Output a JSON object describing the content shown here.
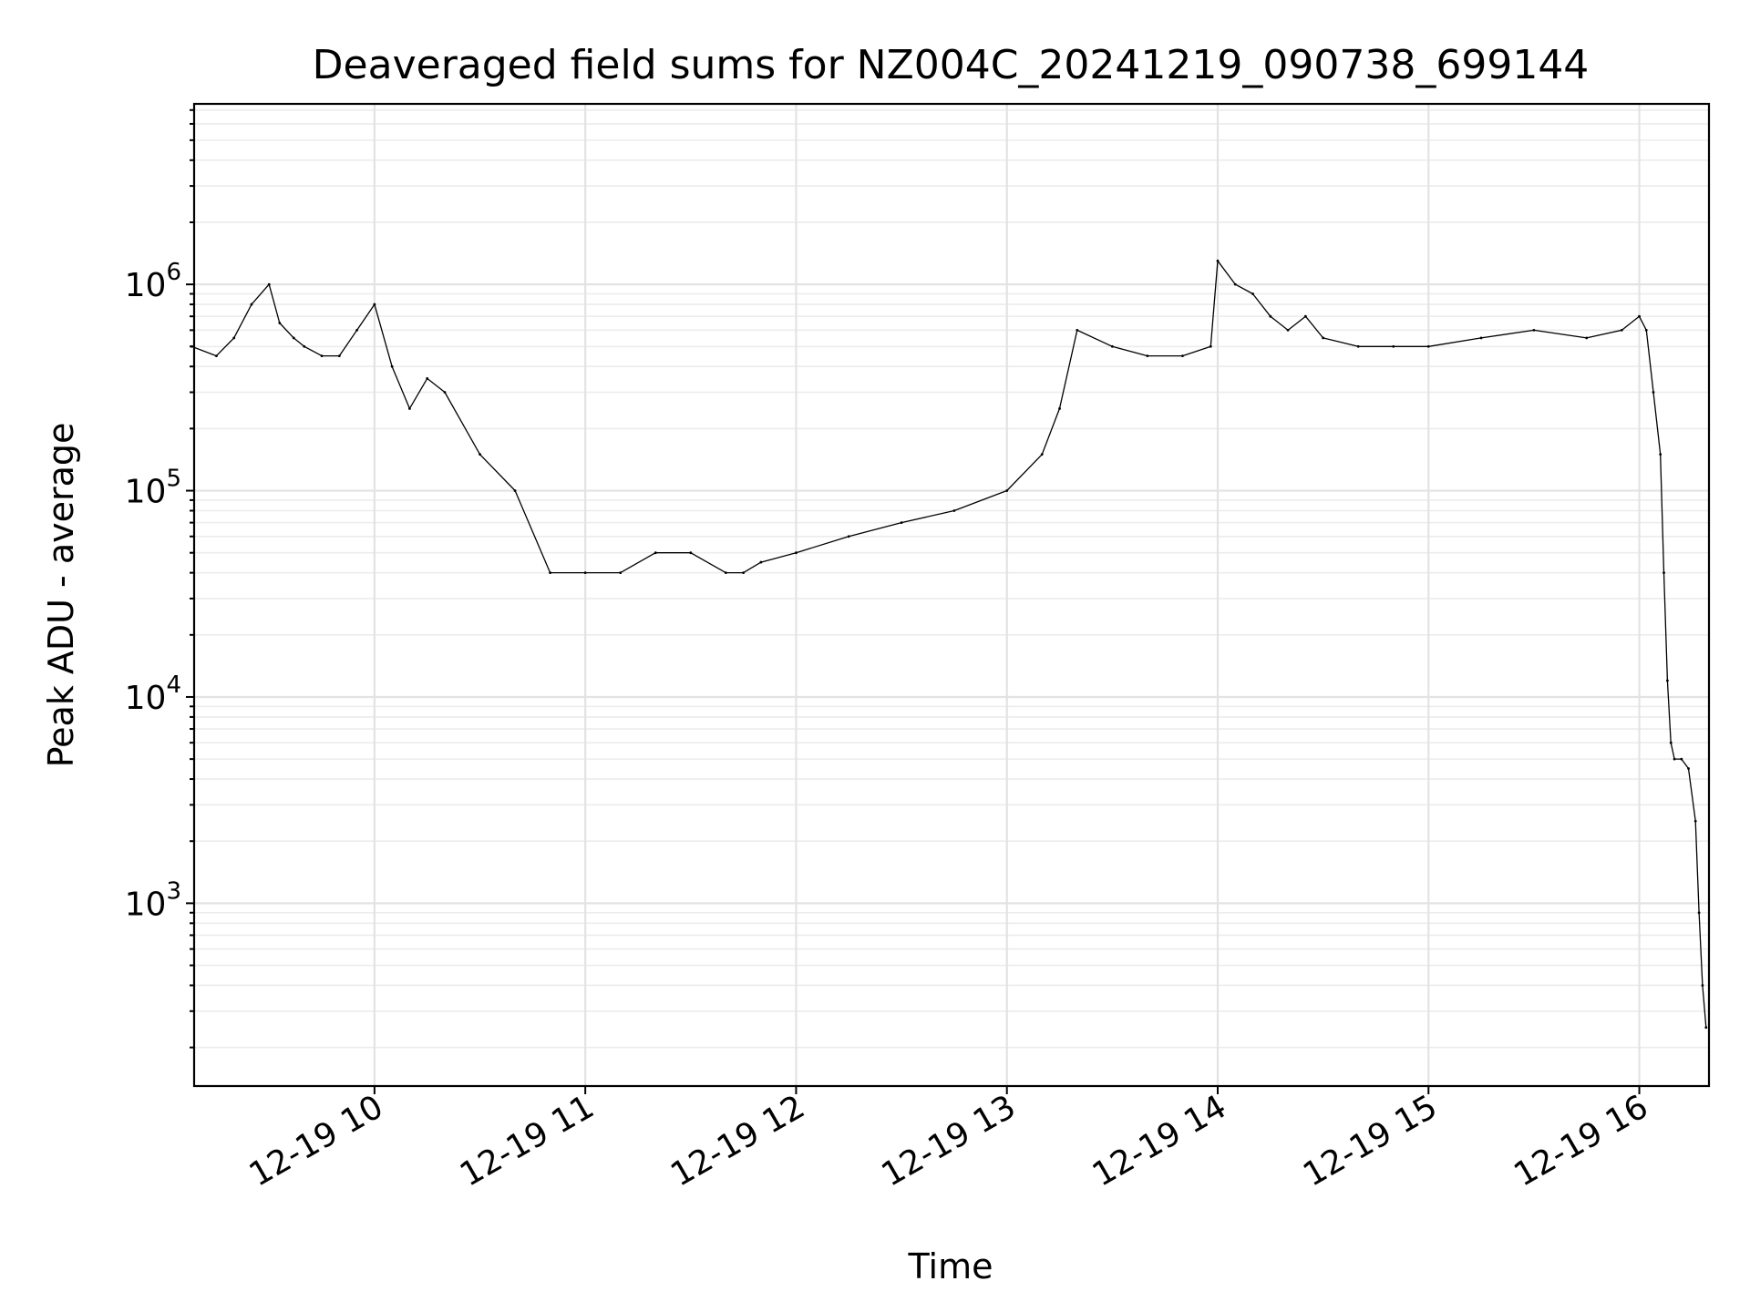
{
  "chart_data": {
    "type": "line",
    "title": "Deaveraged field sums for NZ004C_20241219_090738_699144",
    "xlabel": "Time",
    "ylabel": "Peak ADU - average",
    "yscale": "log",
    "ylim": [
      130,
      7500000
    ],
    "xlim": [
      "2024-12-19T09:08:40",
      "2024-12-19T16:19:50"
    ],
    "grid": "major and minor",
    "x_ticks": [
      {
        "value": "2024-12-19T10:00",
        "label": "12-19 10"
      },
      {
        "value": "2024-12-19T11:00",
        "label": "12-19 11"
      },
      {
        "value": "2024-12-19T12:00",
        "label": "12-19 12"
      },
      {
        "value": "2024-12-19T13:00",
        "label": "12-19 13"
      },
      {
        "value": "2024-12-19T14:00",
        "label": "12-19 14"
      },
      {
        "value": "2024-12-19T15:00",
        "label": "12-19 15"
      },
      {
        "value": "2024-12-19T16:00",
        "label": "12-19 16"
      }
    ],
    "y_ticks": [
      {
        "value": 1000,
        "base": "10",
        "exp": "3"
      },
      {
        "value": 10000,
        "base": "10",
        "exp": "4"
      },
      {
        "value": 100000,
        "base": "10",
        "exp": "5"
      },
      {
        "value": 1000000,
        "base": "10",
        "exp": "6"
      }
    ],
    "series": [
      {
        "color": "#000000",
        "x": [
          "2024-12-19T09:08",
          "2024-12-19T09:15",
          "2024-12-19T09:20",
          "2024-12-19T09:25",
          "2024-12-19T09:30",
          "2024-12-19T09:33",
          "2024-12-19T09:37",
          "2024-12-19T09:40",
          "2024-12-19T09:45",
          "2024-12-19T09:50",
          "2024-12-19T09:55",
          "2024-12-19T10:00",
          "2024-12-19T10:05",
          "2024-12-19T10:10",
          "2024-12-19T10:15",
          "2024-12-19T10:20",
          "2024-12-19T10:30",
          "2024-12-19T10:40",
          "2024-12-19T10:50",
          "2024-12-19T11:00",
          "2024-12-19T11:10",
          "2024-12-19T11:20",
          "2024-12-19T11:30",
          "2024-12-19T11:40",
          "2024-12-19T11:45",
          "2024-12-19T11:50",
          "2024-12-19T12:00",
          "2024-12-19T12:15",
          "2024-12-19T12:30",
          "2024-12-19T12:45",
          "2024-12-19T13:00",
          "2024-12-19T13:10",
          "2024-12-19T13:15",
          "2024-12-19T13:20",
          "2024-12-19T13:30",
          "2024-12-19T13:40",
          "2024-12-19T13:50",
          "2024-12-19T13:58",
          "2024-12-19T14:00",
          "2024-12-19T14:05",
          "2024-12-19T14:10",
          "2024-12-19T14:15",
          "2024-12-19T14:20",
          "2024-12-19T14:25",
          "2024-12-19T14:30",
          "2024-12-19T14:40",
          "2024-12-19T14:50",
          "2024-12-19T15:00",
          "2024-12-19T15:15",
          "2024-12-19T15:30",
          "2024-12-19T15:45",
          "2024-12-19T15:55",
          "2024-12-19T16:00",
          "2024-12-19T16:02",
          "2024-12-19T16:04",
          "2024-12-19T16:06",
          "2024-12-19T16:07",
          "2024-12-19T16:08",
          "2024-12-19T16:09",
          "2024-12-19T16:10",
          "2024-12-19T16:12",
          "2024-12-19T16:14",
          "2024-12-19T16:16",
          "2024-12-19T16:17",
          "2024-12-19T16:18",
          "2024-12-19T16:19"
        ],
        "values": [
          500000,
          450000,
          550000,
          800000,
          1000000,
          650000,
          550000,
          500000,
          450000,
          450000,
          600000,
          800000,
          400000,
          250000,
          350000,
          300000,
          150000,
          100000,
          40000,
          40000,
          40000,
          50000,
          50000,
          40000,
          40000,
          45000,
          50000,
          60000,
          70000,
          80000,
          100000,
          150000,
          250000,
          600000,
          500000,
          450000,
          450000,
          500000,
          1300000,
          1000000,
          900000,
          700000,
          600000,
          700000,
          550000,
          500000,
          500000,
          500000,
          550000,
          600000,
          550000,
          600000,
          700000,
          600000,
          300000,
          150000,
          40000,
          12000,
          6000,
          5000,
          5000,
          4500,
          2500,
          900,
          400,
          250
        ]
      }
    ]
  }
}
